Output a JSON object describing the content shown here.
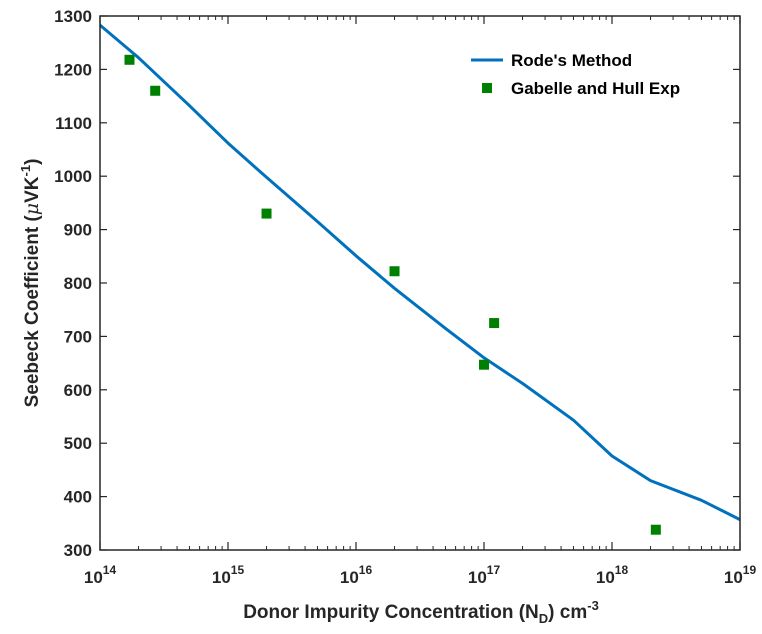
{
  "chart_data": {
    "type": "line",
    "x_scale": "log",
    "xlim": [
      100000000000000.0,
      1e+19
    ],
    "ylim": [
      300,
      1300
    ],
    "x_ticks": [
      100000000000000.0,
      1000000000000000.0,
      1e+16,
      1e+17,
      1e+18,
      1e+19
    ],
    "x_tick_labels": [
      {
        "base": "10",
        "exp": "14"
      },
      {
        "base": "10",
        "exp": "15"
      },
      {
        "base": "10",
        "exp": "16"
      },
      {
        "base": "10",
        "exp": "17"
      },
      {
        "base": "10",
        "exp": "18"
      },
      {
        "base": "10",
        "exp": "19"
      }
    ],
    "y_ticks": [
      300,
      400,
      500,
      600,
      700,
      800,
      900,
      1000,
      1100,
      1200,
      1300
    ],
    "y_tick_labels": [
      "300",
      "400",
      "500",
      "600",
      "700",
      "800",
      "900",
      "1000",
      "1100",
      "1200",
      "1300"
    ],
    "xlabel": {
      "main": "Donor Impurity Concentration (N",
      "sub": "D",
      "after": ") cm",
      "sup": "-3"
    },
    "ylabel": {
      "main": "Seebeck Coefficient (",
      "mu": "μ",
      "unit": "VK",
      "sup": "-1",
      "close": ")"
    },
    "grid": false,
    "legend_position": "top-right",
    "series": [
      {
        "name": "Rode's Method",
        "type": "line",
        "color": "#0072BD",
        "x": [
          100000000000000.0,
          200000000000000.0,
          500000000000000.0,
          1000000000000000.0,
          2000000000000000.0,
          5000000000000000.0,
          1e+16,
          2e+16,
          5e+16,
          1e+17,
          2e+17,
          5e+17,
          1e+18,
          2e+18,
          5e+18,
          1e+19
        ],
        "y": [
          1283,
          1222,
          1132,
          1062,
          998,
          915,
          851,
          790,
          715,
          660,
          612,
          543,
          476,
          430,
          393,
          357
        ]
      },
      {
        "name": "Gabelle and Hull Exp",
        "type": "scatter",
        "marker": "square",
        "color": "#008000",
        "x": [
          170000000000000.0,
          270000000000000.0,
          2000000000000000.0,
          2e+16,
          1e+17,
          1.2e+17,
          2.2e+18
        ],
        "y": [
          1218,
          1160,
          930,
          822,
          647,
          725,
          338
        ]
      }
    ]
  }
}
